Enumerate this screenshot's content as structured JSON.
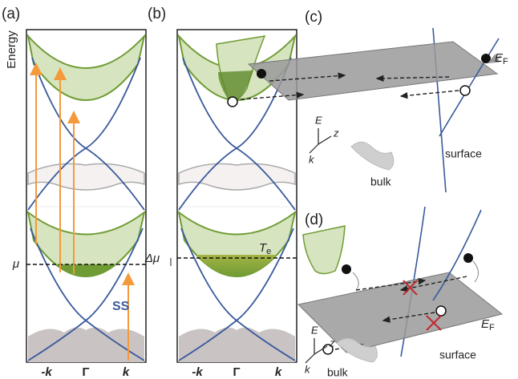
{
  "panels": {
    "a": {
      "label": "(a)",
      "y_axis": "Energy",
      "mu": "μ",
      "ss": "SS",
      "x_labels": [
        "-k",
        "Γ",
        "k"
      ]
    },
    "b": {
      "label": "(b)",
      "delta_mu": "Δμ",
      "te": {
        "main": "T",
        "sub": "e"
      },
      "x_labels": [
        "-k",
        "Γ",
        "k"
      ]
    },
    "c": {
      "label": "(c)",
      "ef": {
        "main": "E",
        "sub": "F"
      },
      "axes": {
        "e": "E",
        "z": "z",
        "k": "k"
      },
      "bulk": "bulk",
      "surface": "surface"
    },
    "d": {
      "label": "(d)",
      "ef": {
        "main": "E",
        "sub": "F"
      },
      "axes": {
        "e": "E",
        "z": "z",
        "k": "k"
      },
      "bulk": "bulk",
      "surface": "surface"
    }
  }
}
